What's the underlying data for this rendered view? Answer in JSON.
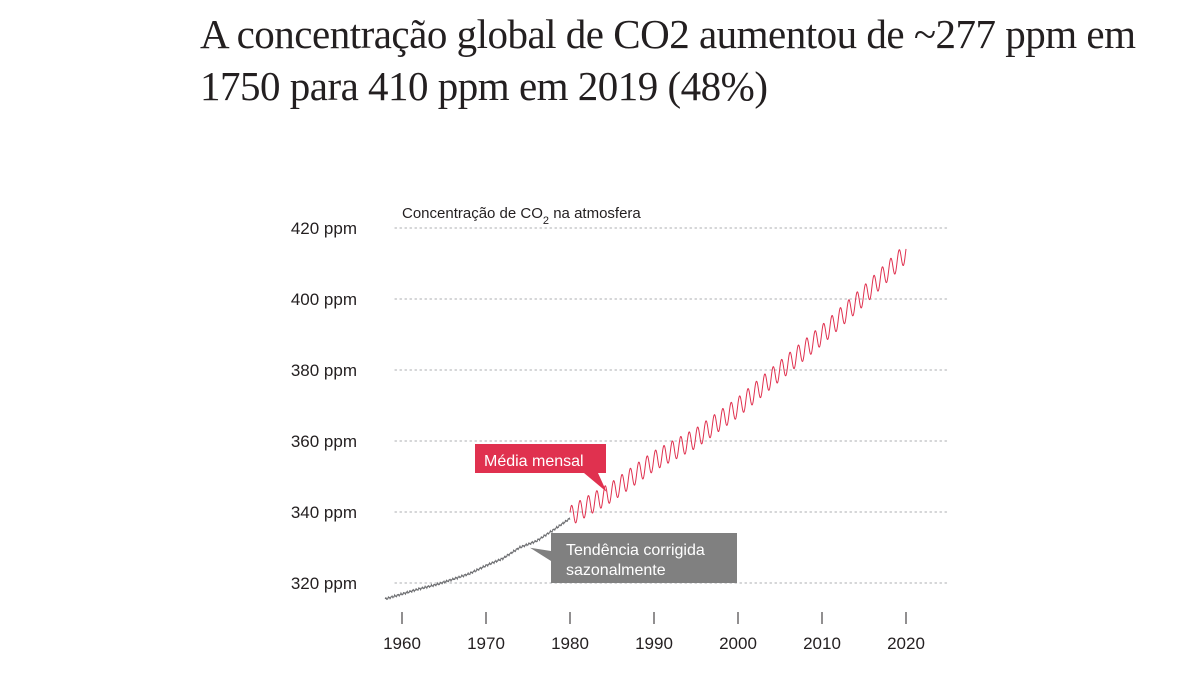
{
  "headline": "A concentração global de CO2 aumentou de ~277 ppm em 1750 para 410 ppm em 2019 (48%)",
  "colors": {
    "monthly": "#e0314f",
    "trend": "#6d6e71",
    "trend_box": "#808080",
    "grid": "#bcbec0",
    "text": "#231f20"
  },
  "chart_data": {
    "type": "line",
    "title": "Concentração de CO₂ na atmosfera",
    "xlabel": "",
    "ylabel": "",
    "xlim": [
      1955,
      2026
    ],
    "ylim": [
      312,
      422
    ],
    "x_ticks": [
      1960,
      1970,
      1980,
      1990,
      2000,
      2010,
      2020
    ],
    "x_tick_labels": [
      "1960",
      "1970",
      "1980",
      "1990",
      "2000",
      "2010",
      "2020"
    ],
    "y_ticks": [
      320,
      340,
      360,
      380,
      400,
      420
    ],
    "y_tick_labels": [
      "320 ppm",
      "340 ppm",
      "360 ppm",
      "380 ppm",
      "400 ppm",
      "420 ppm"
    ],
    "grid": "horizontal dotted",
    "series": [
      {
        "name": "Tendência corrigida sazonalmente",
        "style": "thin gray line",
        "x": [
          1958,
          1960,
          1962,
          1964,
          1966,
          1968,
          1970,
          1972,
          1974,
          1976,
          1978,
          1980
        ],
        "y": [
          315.5,
          316.9,
          318.3,
          319.5,
          321.0,
          322.6,
          324.9,
          326.9,
          330.0,
          331.8,
          334.9,
          338.2
        ]
      },
      {
        "name": "Média mensal",
        "style": "red seasonal line",
        "seasonal_amplitude_ppm": 2.8,
        "x": [
          1980,
          1985,
          1990,
          1995,
          2000,
          2005,
          2010,
          2015,
          2020
        ],
        "y": [
          338.8,
          345.7,
          354.4,
          360.8,
          369.5,
          379.8,
          389.9,
          401.0,
          413.0
        ]
      }
    ],
    "annotations": [
      {
        "text": "Média mensal",
        "x": 1984,
        "y": 346.5
      },
      {
        "text": "Tendência corrigida sazonalmente",
        "lines": [
          "Tendência corrigida",
          "sazonalmente"
        ],
        "x": 1975,
        "y": 330.2
      }
    ]
  }
}
